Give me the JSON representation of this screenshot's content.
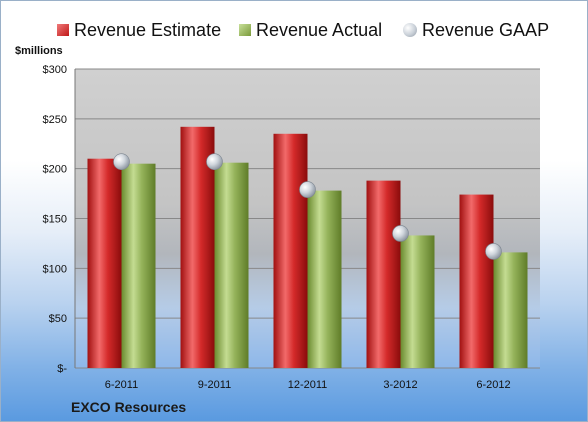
{
  "legend": {
    "estimate": "Revenue Estimate",
    "actual": "Revenue Actual",
    "gaap": "Revenue GAAP"
  },
  "unit_label": "$millions",
  "company": "EXCO Resources",
  "colors": {
    "estimate": "#cc2222",
    "actual": "#8fae4f",
    "gaap": "#c9d0d8"
  },
  "chart_data": {
    "type": "bar",
    "categories": [
      "6-2011",
      "9-2011",
      "12-2011",
      "3-2012",
      "6-2012"
    ],
    "series": [
      {
        "name": "Revenue Estimate",
        "kind": "bar",
        "values": [
          210,
          242,
          235,
          188,
          174
        ]
      },
      {
        "name": "Revenue Actual",
        "kind": "bar",
        "values": [
          205,
          206,
          178,
          133,
          116
        ]
      },
      {
        "name": "Revenue GAAP",
        "kind": "marker",
        "values": [
          207,
          207,
          179,
          135,
          117
        ]
      }
    ],
    "ylabel": "$millions",
    "ylim": [
      0,
      300
    ],
    "yticks": [
      0,
      50,
      100,
      150,
      200,
      250,
      300
    ],
    "ytick_labels": [
      "$-",
      "$50",
      "$100",
      "$150",
      "$200",
      "$250",
      "$300"
    ],
    "grid": true,
    "legend_position": "top"
  }
}
